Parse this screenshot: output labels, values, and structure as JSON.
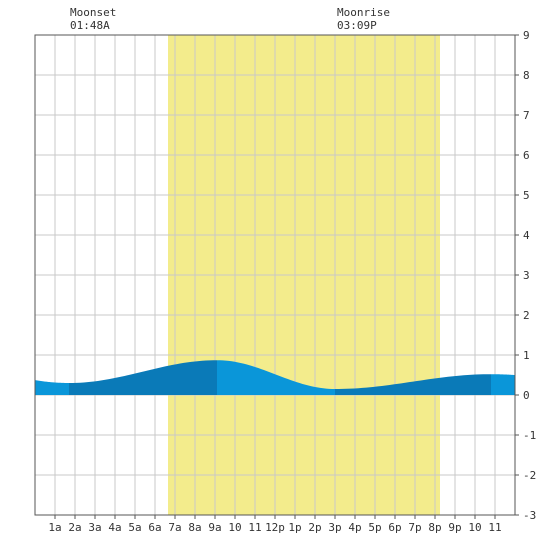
{
  "chart_data": {
    "type": "area",
    "x_tick_labels": [
      "1a",
      "2a",
      "3a",
      "4a",
      "5a",
      "6a",
      "7a",
      "8a",
      "9a",
      "10",
      "11",
      "12p",
      "1p",
      "2p",
      "3p",
      "4p",
      "5p",
      "6p",
      "7p",
      "8p",
      "9p",
      "10",
      "11"
    ],
    "y_ticks": [
      9,
      8,
      7,
      6,
      5,
      4,
      3,
      2,
      1,
      0,
      -1,
      -2,
      -3
    ],
    "ylim": [
      -3,
      9
    ],
    "xlim_hours": [
      0,
      24
    ],
    "daylight_hours": [
      6.65,
      20.25
    ],
    "tide_extremes": [
      {
        "hour": 1.7,
        "height": 0.3,
        "kind": "low"
      },
      {
        "hour": 9.1,
        "height": 0.87,
        "kind": "high"
      },
      {
        "hour": 15.0,
        "height": 0.15,
        "kind": "low"
      },
      {
        "hour": 22.8,
        "height": 0.52,
        "kind": "high"
      }
    ],
    "tide_start": {
      "hour": 0,
      "height": 0.38
    },
    "tide_end": {
      "hour": 24,
      "height": 0.48
    },
    "grid": true
  },
  "annotations": {
    "moonset": {
      "label": "Moonset",
      "time": "01:48A"
    },
    "moonrise": {
      "label": "Moonrise",
      "time": "03:09P"
    }
  },
  "colors": {
    "daylight": "#f3ec8c",
    "tide_light": "#0a96d9",
    "tide_dark": "#0a7ab8",
    "grid": "#c8c8c8",
    "axis": "#555555"
  }
}
